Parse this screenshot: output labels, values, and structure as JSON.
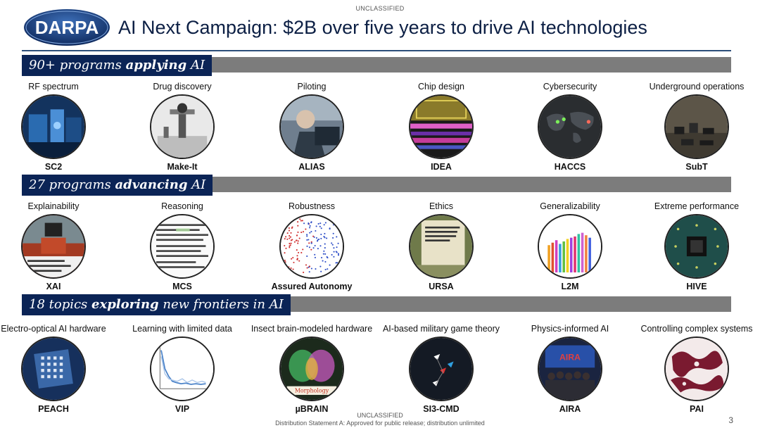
{
  "header": {
    "classification_top": "UNCLASSIFIED",
    "logo_text": "DARPA",
    "title": "AI Next Campaign: $2B over five years to drive AI technologies"
  },
  "sections": [
    {
      "label_pre": "90+ programs ",
      "label_bold": "applying",
      "label_post": " AI",
      "items": [
        {
          "caption": "RF spectrum",
          "name": "SC2",
          "icon": "rf-spectrum-icon"
        },
        {
          "caption": "Drug discovery",
          "name": "Make-It",
          "icon": "robot-arm-icon"
        },
        {
          "caption": "Piloting",
          "name": "ALIAS",
          "icon": "pilot-icon"
        },
        {
          "caption": "Chip design",
          "name": "IDEA",
          "icon": "chip-layout-icon"
        },
        {
          "caption": "Cybersecurity",
          "name": "HACCS",
          "icon": "world-map-icon"
        },
        {
          "caption": "Underground operations",
          "name": "SubT",
          "icon": "robots-group-icon"
        }
      ]
    },
    {
      "label_pre": "27 programs ",
      "label_bold": "advancing",
      "label_post": " AI",
      "items": [
        {
          "caption": "Explainability",
          "name": "XAI",
          "icon": "robot-icon"
        },
        {
          "caption": "Reasoning",
          "name": "MCS",
          "icon": "text-document-icon"
        },
        {
          "caption": "Robustness",
          "name": "Assured Autonomy",
          "icon": "scatter-plot-icon"
        },
        {
          "caption": "Ethics",
          "name": "URSA",
          "icon": "report-cover-icon"
        },
        {
          "caption": "Generalizability",
          "name": "L2M",
          "icon": "bar-chart-icon"
        },
        {
          "caption": "Extreme performance",
          "name": "HIVE",
          "icon": "circuit-board-icon"
        }
      ]
    },
    {
      "label_pre": "18 topics ",
      "label_bold": "exploring",
      "label_post": " new frontiers in  AI",
      "items": [
        {
          "caption": "Electro-optical AI hardware",
          "name": "PEACH",
          "icon": "optical-chip-icon"
        },
        {
          "caption": "Learning with limited data",
          "name": "VIP",
          "icon": "line-chart-icon"
        },
        {
          "caption": "Insect brain-modeled hardware",
          "name": "µBRAIN",
          "icon": "insect-brain-icon",
          "overlay_text": "Morphology"
        },
        {
          "caption": "AI-based military game theory",
          "name": "SI3-CMD",
          "icon": "drones-icon"
        },
        {
          "caption": "Physics-informed AI",
          "name": "AIRA",
          "icon": "group-photo-icon",
          "overlay_text": "AIRA"
        },
        {
          "caption": "Controlling complex systems",
          "name": "PAI",
          "icon": "pattern-icon"
        }
      ]
    }
  ],
  "footer": {
    "classification_bottom": "UNCLASSIFIED",
    "distribution": "Distribution Statement A: Approved for public release; distribution unlimited",
    "page_number": "3"
  }
}
